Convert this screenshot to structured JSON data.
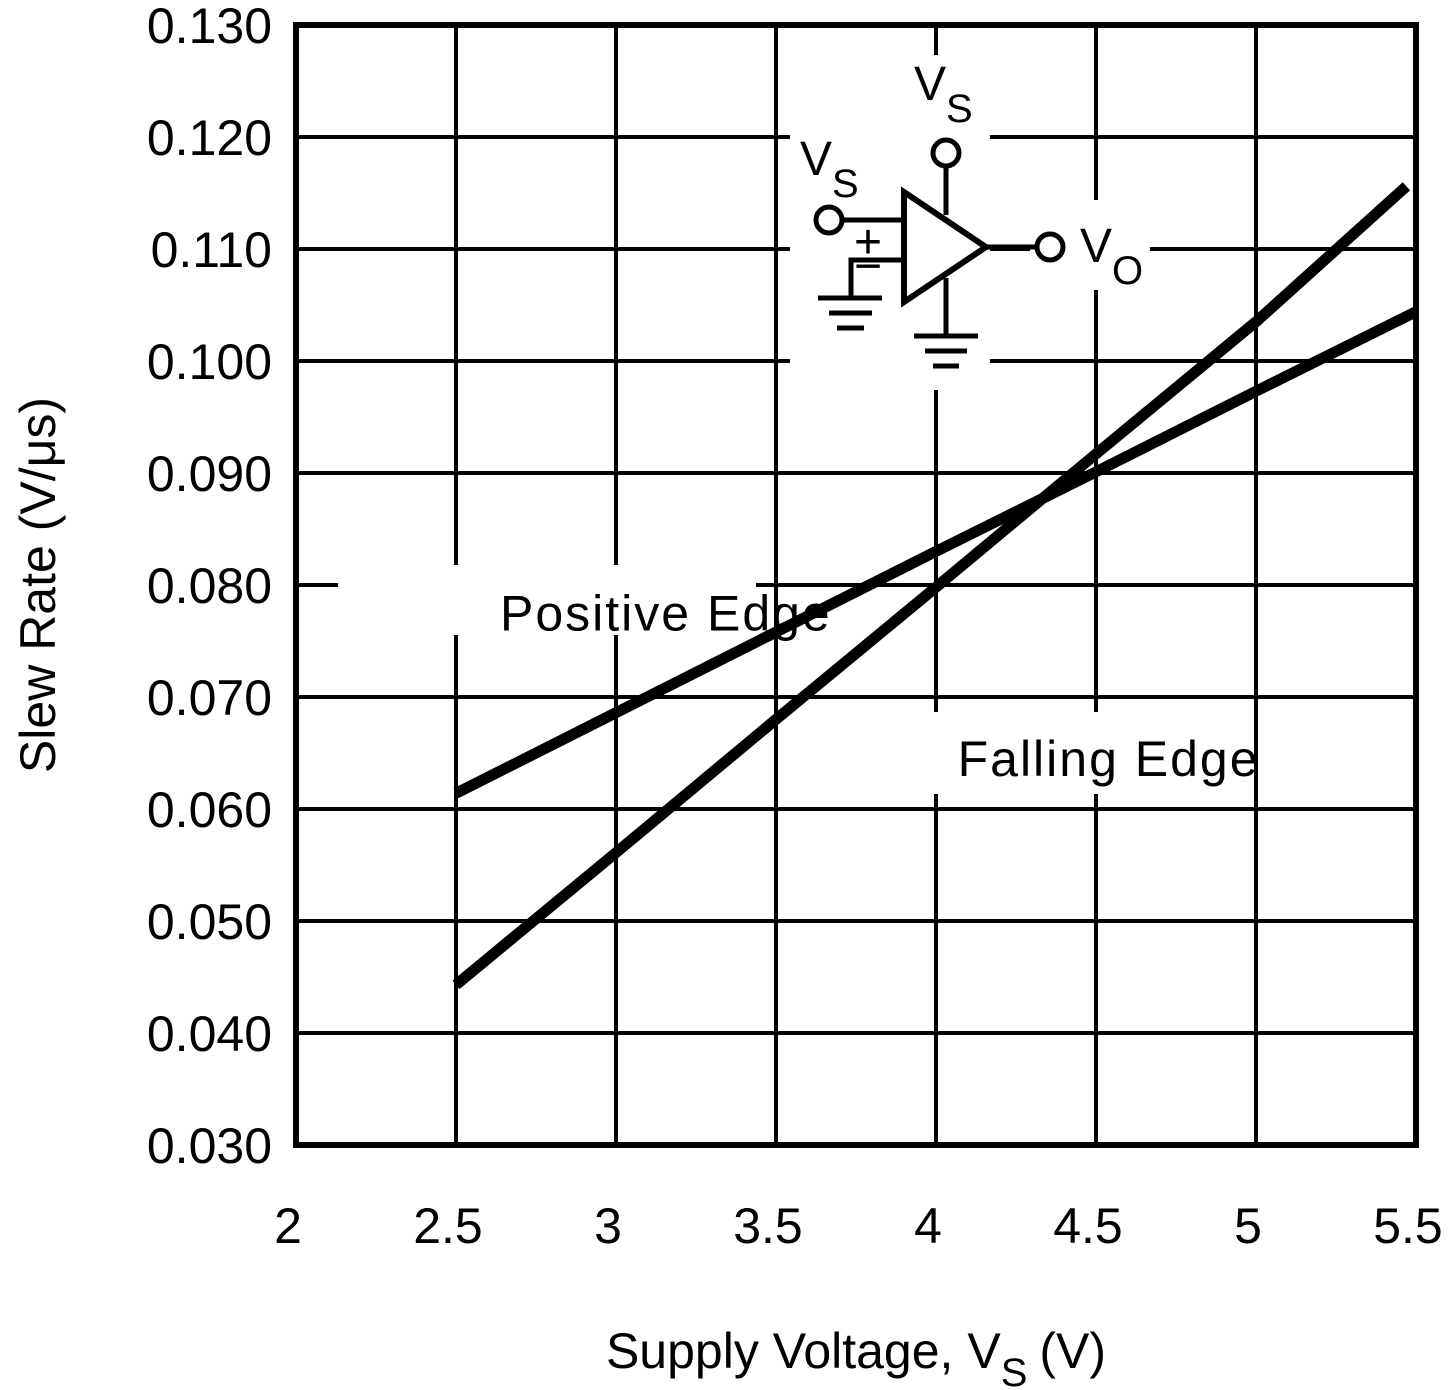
{
  "chart_data": {
    "type": "line",
    "title": "",
    "xlabel": "Supply Voltage, V",
    "xlabel_subscript": "S",
    "xlabel_unit": "(V)",
    "ylabel": "Slew Rate (V/μs)",
    "xlim": [
      2,
      5.5
    ],
    "ylim": [
      0.03,
      0.13
    ],
    "grid": true,
    "x_ticks": [
      "2",
      "2.5",
      "3",
      "3.5",
      "4",
      "4.5",
      "5",
      "5.5"
    ],
    "y_ticks": [
      "0.130",
      "0.120",
      "0.110",
      "0.100",
      "0.090",
      "0.080",
      "0.070",
      "0.060",
      "0.050",
      "0.040",
      "0.030"
    ],
    "series": [
      {
        "name": "Positive Edge",
        "x": [
          2.5,
          3.0,
          3.5,
          4.0,
          4.5,
          5.0,
          5.5
        ],
        "values": [
          0.0614,
          0.0686,
          0.0758,
          0.083,
          0.0901,
          0.0973,
          0.1044
        ]
      },
      {
        "name": "Falling Edge",
        "x": [
          2.5,
          3.0,
          3.5,
          4.0,
          4.5,
          5.0,
          5.47
        ],
        "values": [
          0.0443,
          0.0561,
          0.068,
          0.0798,
          0.0917,
          0.1035,
          0.1156
        ]
      }
    ],
    "annotations": [
      {
        "text": "Positive Edge",
        "x": 2.65,
        "y": 0.0795
      },
      {
        "text": "Falling Edge",
        "x": 4.08,
        "y": 0.0665
      }
    ],
    "inset_schematic": {
      "description": "Op-amp test circuit: non-inverting input tied to V_S, inverting input to ground, supply to V_S and ground, output V_O",
      "labels": {
        "input": "V",
        "input_sub": "S",
        "supply": "V",
        "supply_sub": "S",
        "output": "V",
        "output_sub": "O",
        "plus": "+",
        "minus": "−"
      }
    }
  }
}
